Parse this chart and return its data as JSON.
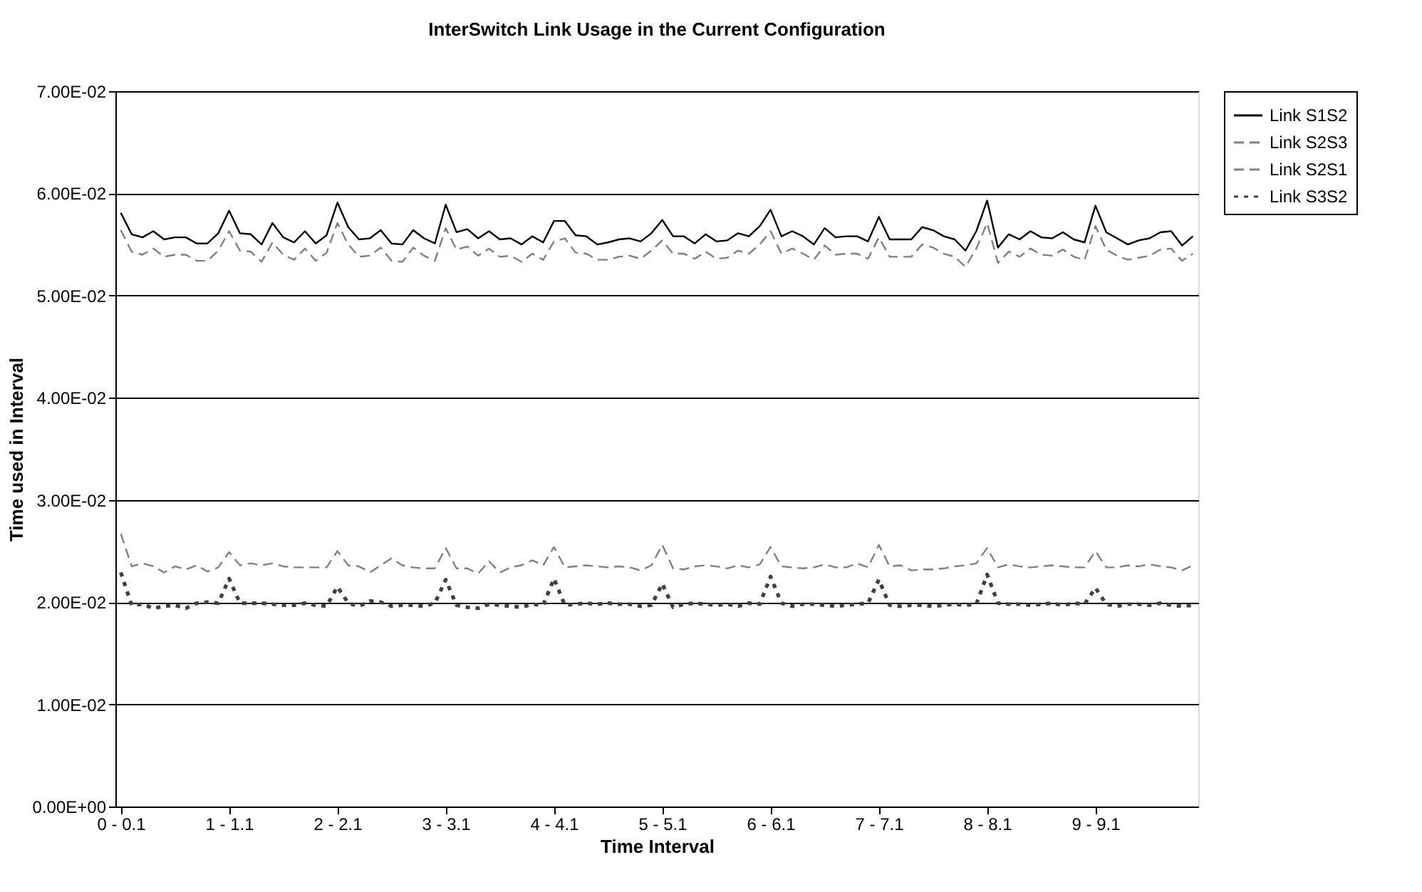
{
  "chart_data": {
    "type": "line",
    "title": "InterSwitch Link Usage in the Current Configuration",
    "xlabel": "Time Interval",
    "ylabel": "Time used in Interval",
    "categories": [
      "0 - 0.1",
      null,
      null,
      null,
      null,
      null,
      null,
      null,
      null,
      null,
      "1 - 1.1",
      null,
      null,
      null,
      null,
      null,
      null,
      null,
      null,
      null,
      "2 - 2.1",
      null,
      null,
      null,
      null,
      null,
      null,
      null,
      null,
      null,
      "3 - 3.1",
      null,
      null,
      null,
      null,
      null,
      null,
      null,
      null,
      null,
      "4 - 4.1",
      null,
      null,
      null,
      null,
      null,
      null,
      null,
      null,
      null,
      "5 - 5.1",
      null,
      null,
      null,
      null,
      null,
      null,
      null,
      null,
      null,
      "6 - 6.1",
      null,
      null,
      null,
      null,
      null,
      null,
      null,
      null,
      null,
      "7 - 7.1",
      null,
      null,
      null,
      null,
      null,
      null,
      null,
      null,
      null,
      "8 - 8.1",
      null,
      null,
      null,
      null,
      null,
      null,
      null,
      null,
      null,
      "9 - 9.1",
      null,
      null,
      null,
      null,
      null,
      null,
      null,
      null,
      null
    ],
    "ylim": [
      0,
      0.07
    ],
    "yticks": [
      {
        "value": 0,
        "label": "0.00E+00"
      },
      {
        "value": 0.01,
        "label": "1.00E-02"
      },
      {
        "value": 0.02,
        "label": "2.00E-02"
      },
      {
        "value": 0.03,
        "label": "3.00E-02"
      },
      {
        "value": 0.04,
        "label": "4.00E-02"
      },
      {
        "value": 0.05,
        "label": "5.00E-02"
      },
      {
        "value": 0.06,
        "label": "6.00E-02"
      },
      {
        "value": 0.07,
        "label": "7.00E-02"
      }
    ],
    "grid": "y",
    "legend": "right",
    "marker": "none",
    "series": [
      {
        "name": "Link S1S2",
        "color": "#000000",
        "line_style": "solid",
        "values": [
          0.0581,
          0.056,
          0.0557,
          0.0563,
          0.0555,
          0.0557,
          0.0557,
          0.0551,
          0.0551,
          0.0561,
          0.0583,
          0.0561,
          0.056,
          0.055,
          0.0571,
          0.0557,
          0.0552,
          0.0563,
          0.0551,
          0.0559,
          0.0591,
          0.0567,
          0.0555,
          0.0556,
          0.0564,
          0.0551,
          0.055,
          0.0564,
          0.0556,
          0.0551,
          0.0589,
          0.0562,
          0.0565,
          0.0556,
          0.0563,
          0.0555,
          0.0556,
          0.055,
          0.0558,
          0.0552,
          0.0573,
          0.0573,
          0.0559,
          0.0558,
          0.055,
          0.0552,
          0.0555,
          0.0556,
          0.0553,
          0.0561,
          0.0574,
          0.0558,
          0.0558,
          0.0551,
          0.056,
          0.0553,
          0.0554,
          0.0561,
          0.0558,
          0.0568,
          0.0584,
          0.0558,
          0.0563,
          0.0558,
          0.055,
          0.0566,
          0.0557,
          0.0558,
          0.0558,
          0.0553,
          0.0577,
          0.0555,
          0.0555,
          0.0555,
          0.0567,
          0.0564,
          0.0558,
          0.0555,
          0.0544,
          0.0563,
          0.0593,
          0.0547,
          0.056,
          0.0555,
          0.0563,
          0.0557,
          0.0556,
          0.0562,
          0.0555,
          0.0552,
          0.0588,
          0.0562,
          0.0556,
          0.055,
          0.0554,
          0.0556,
          0.0562,
          0.0563,
          0.0549,
          0.0558
        ]
      },
      {
        "name": "Link S2S3",
        "color": "#808080",
        "line_style": "dashed",
        "values": [
          0.0564,
          0.0543,
          0.054,
          0.0546,
          0.0538,
          0.054,
          0.054,
          0.0534,
          0.0534,
          0.0544,
          0.0563,
          0.0544,
          0.0543,
          0.0533,
          0.0552,
          0.054,
          0.0535,
          0.0546,
          0.0534,
          0.0542,
          0.0571,
          0.055,
          0.0538,
          0.0539,
          0.0547,
          0.0534,
          0.0533,
          0.0547,
          0.0539,
          0.0534,
          0.0566,
          0.0545,
          0.0548,
          0.0539,
          0.0546,
          0.0538,
          0.0539,
          0.0533,
          0.0541,
          0.0535,
          0.0553,
          0.0556,
          0.0542,
          0.0541,
          0.0535,
          0.0535,
          0.0538,
          0.0539,
          0.0536,
          0.0544,
          0.0554,
          0.0541,
          0.0541,
          0.0536,
          0.0543,
          0.0536,
          0.0537,
          0.0544,
          0.0541,
          0.055,
          0.0563,
          0.0541,
          0.0546,
          0.0541,
          0.0535,
          0.0549,
          0.054,
          0.0541,
          0.0541,
          0.0536,
          0.0557,
          0.0538,
          0.0538,
          0.0538,
          0.055,
          0.0547,
          0.0541,
          0.0538,
          0.0528,
          0.0546,
          0.0571,
          0.0532,
          0.0543,
          0.0538,
          0.0546,
          0.054,
          0.0539,
          0.0545,
          0.0538,
          0.0535,
          0.0568,
          0.0545,
          0.0539,
          0.0535,
          0.0537,
          0.0539,
          0.0545,
          0.0546,
          0.0534,
          0.0541
        ]
      },
      {
        "name": "Link S2S1",
        "color": "#808080",
        "line_style": "dashed",
        "values": [
          0.0267,
          0.0235,
          0.0238,
          0.0235,
          0.0229,
          0.0235,
          0.0232,
          0.0236,
          0.023,
          0.0234,
          0.0249,
          0.0236,
          0.0238,
          0.0236,
          0.0238,
          0.0235,
          0.0234,
          0.0234,
          0.0234,
          0.0234,
          0.025,
          0.0236,
          0.0235,
          0.0229,
          0.0236,
          0.0243,
          0.0236,
          0.0234,
          0.0233,
          0.0233,
          0.0253,
          0.0233,
          0.0233,
          0.0228,
          0.024,
          0.0229,
          0.0234,
          0.0236,
          0.0241,
          0.0236,
          0.0254,
          0.0234,
          0.0235,
          0.0236,
          0.0235,
          0.0234,
          0.0235,
          0.0234,
          0.0231,
          0.0236,
          0.0256,
          0.0233,
          0.0232,
          0.0235,
          0.0236,
          0.0235,
          0.0233,
          0.0236,
          0.0234,
          0.0237,
          0.0254,
          0.0235,
          0.0234,
          0.0233,
          0.0234,
          0.0237,
          0.0234,
          0.0234,
          0.0238,
          0.0234,
          0.0256,
          0.0235,
          0.0236,
          0.0231,
          0.0232,
          0.0232,
          0.0233,
          0.0235,
          0.0236,
          0.0238,
          0.0253,
          0.0234,
          0.0237,
          0.0235,
          0.0234,
          0.0235,
          0.0236,
          0.0235,
          0.0234,
          0.0234,
          0.025,
          0.0234,
          0.0234,
          0.0236,
          0.0235,
          0.0237,
          0.0235,
          0.0234,
          0.0231,
          0.0236
        ]
      },
      {
        "name": "Link S3S2",
        "color": "#404040",
        "line_style": "dotted",
        "values": [
          0.0229,
          0.0197,
          0.0198,
          0.0194,
          0.0196,
          0.0197,
          0.0194,
          0.0199,
          0.02,
          0.0199,
          0.0223,
          0.0199,
          0.0199,
          0.0199,
          0.0198,
          0.0197,
          0.0197,
          0.0199,
          0.0197,
          0.0196,
          0.0215,
          0.0199,
          0.0196,
          0.0201,
          0.02,
          0.0196,
          0.0197,
          0.0197,
          0.0196,
          0.0199,
          0.0222,
          0.0197,
          0.0195,
          0.0194,
          0.0198,
          0.0197,
          0.0196,
          0.0195,
          0.0198,
          0.0197,
          0.0223,
          0.0197,
          0.0198,
          0.0199,
          0.0198,
          0.0199,
          0.0198,
          0.0198,
          0.0196,
          0.0197,
          0.0218,
          0.0195,
          0.0198,
          0.0199,
          0.0198,
          0.0197,
          0.0198,
          0.0196,
          0.0199,
          0.0198,
          0.0225,
          0.0199,
          0.0196,
          0.0198,
          0.0198,
          0.0197,
          0.0196,
          0.0197,
          0.0198,
          0.0199,
          0.0222,
          0.0197,
          0.0196,
          0.0197,
          0.0197,
          0.0196,
          0.0197,
          0.0198,
          0.0197,
          0.0198,
          0.0227,
          0.0199,
          0.0198,
          0.0198,
          0.0197,
          0.0198,
          0.0199,
          0.0197,
          0.0199,
          0.0198,
          0.0214,
          0.0198,
          0.0196,
          0.0198,
          0.0198,
          0.0197,
          0.0199,
          0.0197,
          0.0196,
          0.0197
        ]
      }
    ]
  }
}
